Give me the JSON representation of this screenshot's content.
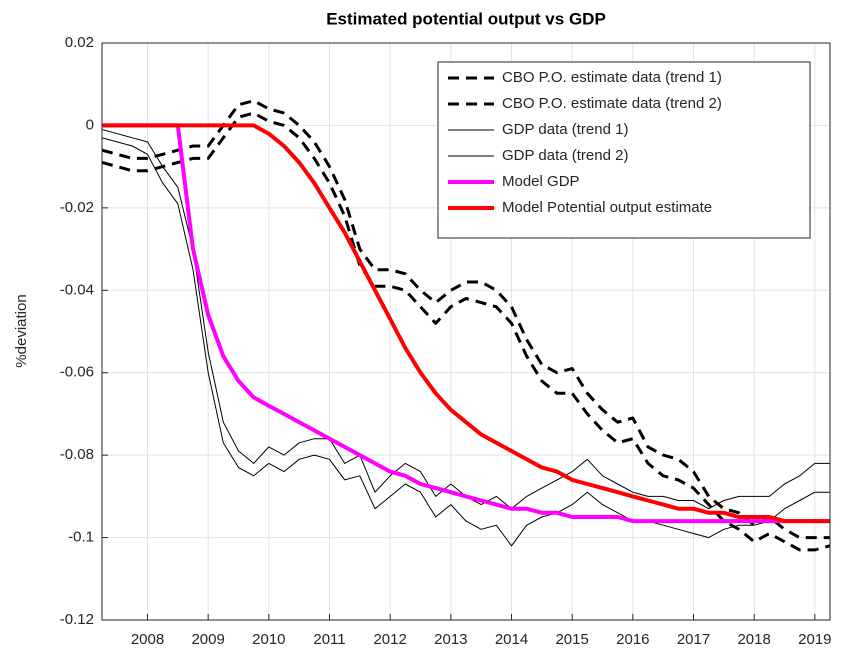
{
  "chart_data": {
    "type": "line",
    "title": "Estimated potential output vs GDP",
    "y_label": "%deviation",
    "x": [
      2007.25,
      2007.5,
      2007.75,
      2008,
      2008.25,
      2008.5,
      2008.75,
      2009,
      2009.25,
      2009.5,
      2009.75,
      2010,
      2010.25,
      2010.5,
      2010.75,
      2011,
      2011.25,
      2011.5,
      2011.75,
      2012,
      2012.25,
      2012.5,
      2012.75,
      2013,
      2013.25,
      2013.5,
      2013.75,
      2014,
      2014.25,
      2014.5,
      2014.75,
      2015,
      2015.25,
      2015.5,
      2015.75,
      2016,
      2016.25,
      2016.5,
      2016.75,
      2017,
      2017.25,
      2017.5,
      2017.75,
      2018,
      2018.25,
      2018.5,
      2018.75,
      2019,
      2019.25
    ],
    "series": [
      {
        "name": "CBO P.O. estimate data (trend 1)",
        "color": "#000000",
        "width": 3,
        "dashed": true,
        "values": [
          -0.006,
          -0.007,
          -0.008,
          -0.008,
          -0.007,
          -0.006,
          -0.005,
          -0.005,
          0.0,
          0.005,
          0.006,
          0.004,
          0.003,
          0.0,
          -0.004,
          -0.01,
          -0.018,
          -0.03,
          -0.035,
          -0.035,
          -0.036,
          -0.04,
          -0.043,
          -0.04,
          -0.038,
          -0.038,
          -0.04,
          -0.044,
          -0.052,
          -0.058,
          -0.06,
          -0.059,
          -0.065,
          -0.069,
          -0.072,
          -0.071,
          -0.078,
          -0.08,
          -0.081,
          -0.084,
          -0.09,
          -0.093,
          -0.094,
          -0.097,
          -0.095,
          -0.098,
          -0.1,
          -0.1,
          -0.1
        ]
      },
      {
        "name": "CBO P.O. estimate data (trend 2)",
        "color": "#000000",
        "width": 3,
        "dashed": true,
        "values": [
          -0.009,
          -0.01,
          -0.011,
          -0.011,
          -0.01,
          -0.009,
          -0.008,
          -0.008,
          -0.003,
          0.002,
          0.003,
          0.001,
          0.0,
          -0.003,
          -0.008,
          -0.014,
          -0.022,
          -0.034,
          -0.039,
          -0.039,
          -0.04,
          -0.044,
          -0.048,
          -0.044,
          -0.042,
          -0.043,
          -0.044,
          -0.048,
          -0.056,
          -0.062,
          -0.065,
          -0.065,
          -0.07,
          -0.074,
          -0.077,
          -0.076,
          -0.082,
          -0.085,
          -0.086,
          -0.088,
          -0.092,
          -0.096,
          -0.098,
          -0.101,
          -0.099,
          -0.101,
          -0.103,
          -0.103,
          -0.102
        ]
      },
      {
        "name": "GDP data (trend 1)",
        "color": "#000000",
        "width": 1,
        "dashed": false,
        "values": [
          -0.001,
          -0.002,
          -0.003,
          -0.004,
          -0.01,
          -0.015,
          -0.03,
          -0.055,
          -0.072,
          -0.079,
          -0.082,
          -0.078,
          -0.08,
          -0.077,
          -0.076,
          -0.076,
          -0.082,
          -0.08,
          -0.089,
          -0.085,
          -0.082,
          -0.084,
          -0.09,
          -0.087,
          -0.09,
          -0.092,
          -0.09,
          -0.093,
          -0.09,
          -0.088,
          -0.086,
          -0.084,
          -0.081,
          -0.085,
          -0.087,
          -0.089,
          -0.09,
          -0.09,
          -0.091,
          -0.091,
          -0.093,
          -0.091,
          -0.09,
          -0.09,
          -0.09,
          -0.087,
          -0.085,
          -0.082,
          -0.082
        ]
      },
      {
        "name": "GDP data (trend 2)",
        "color": "#000000",
        "width": 1,
        "dashed": false,
        "values": [
          -0.003,
          -0.004,
          -0.005,
          -0.007,
          -0.014,
          -0.019,
          -0.035,
          -0.06,
          -0.077,
          -0.083,
          -0.085,
          -0.082,
          -0.084,
          -0.081,
          -0.08,
          -0.081,
          -0.086,
          -0.085,
          -0.093,
          -0.09,
          -0.087,
          -0.089,
          -0.095,
          -0.092,
          -0.096,
          -0.098,
          -0.097,
          -0.102,
          -0.097,
          -0.095,
          -0.094,
          -0.092,
          -0.089,
          -0.092,
          -0.094,
          -0.096,
          -0.096,
          -0.097,
          -0.098,
          -0.099,
          -0.1,
          -0.098,
          -0.097,
          -0.097,
          -0.096,
          -0.093,
          -0.091,
          -0.089,
          -0.089
        ]
      },
      {
        "name": "Model GDP",
        "color": "#ff00ff",
        "width": 4,
        "dashed": false,
        "values": [
          0,
          0,
          0,
          0,
          0,
          0,
          -0.03,
          -0.046,
          -0.056,
          -0.062,
          -0.066,
          -0.068,
          -0.07,
          -0.072,
          -0.074,
          -0.076,
          -0.078,
          -0.08,
          -0.082,
          -0.084,
          -0.085,
          -0.087,
          -0.088,
          -0.089,
          -0.09,
          -0.091,
          -0.092,
          -0.093,
          -0.093,
          -0.094,
          -0.094,
          -0.095,
          -0.095,
          -0.095,
          -0.095,
          -0.096,
          -0.096,
          -0.096,
          -0.096,
          -0.096,
          -0.096,
          -0.096,
          -0.096,
          -0.096,
          -0.096,
          -0.096,
          -0.096,
          -0.096,
          -0.096
        ]
      },
      {
        "name": "Model Potential output estimate",
        "color": "#ff0000",
        "width": 4,
        "dashed": false,
        "values": [
          0,
          0,
          0,
          0,
          0,
          0,
          0,
          0,
          0,
          0,
          0,
          -0.002,
          -0.005,
          -0.009,
          -0.014,
          -0.02,
          -0.026,
          -0.033,
          -0.04,
          -0.047,
          -0.054,
          -0.06,
          -0.065,
          -0.069,
          -0.072,
          -0.075,
          -0.077,
          -0.079,
          -0.081,
          -0.083,
          -0.084,
          -0.086,
          -0.087,
          -0.088,
          -0.089,
          -0.09,
          -0.091,
          -0.092,
          -0.093,
          -0.093,
          -0.094,
          -0.094,
          -0.095,
          -0.095,
          -0.095,
          -0.096,
          -0.096,
          -0.096,
          -0.096
        ]
      }
    ],
    "xlim": [
      2007.25,
      2019.25
    ],
    "xticks": [
      2008,
      2009,
      2010,
      2011,
      2012,
      2013,
      2014,
      2015,
      2016,
      2017,
      2018,
      2019
    ],
    "ylim": [
      -0.12,
      0.02
    ],
    "yticks": [
      -0.12,
      -0.1,
      -0.08,
      -0.06,
      -0.04,
      -0.02,
      0,
      0.02
    ],
    "grid": true,
    "legend": "northeast"
  }
}
